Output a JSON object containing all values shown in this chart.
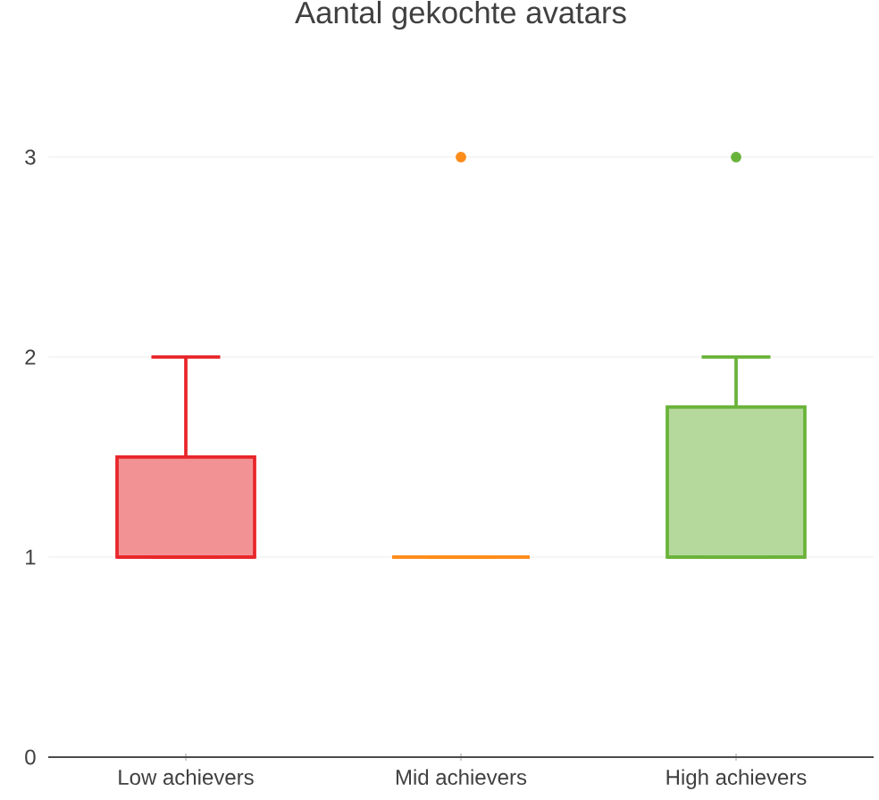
{
  "chart_data": {
    "type": "box",
    "title": "Aantal gekochte avatars",
    "categories": [
      "Low achievers",
      "Mid achievers",
      "High achievers"
    ],
    "colors": [
      "#e8262a",
      "#ff8c1a",
      "#6ab33a"
    ],
    "boxes": [
      {
        "low": 1,
        "q1": 1,
        "median": 1,
        "q3": 1.5,
        "high": 2
      },
      {
        "low": 1,
        "q1": 1,
        "median": 1,
        "q3": 1,
        "high": 1,
        "outliers": [
          3
        ]
      },
      {
        "low": 1,
        "q1": 1,
        "median": 1,
        "q3": 1.75,
        "high": 2,
        "outliers": [
          3
        ]
      }
    ],
    "yticks": [
      0,
      1,
      2,
      3
    ],
    "ylim": [
      0,
      3
    ],
    "grid": "y"
  }
}
